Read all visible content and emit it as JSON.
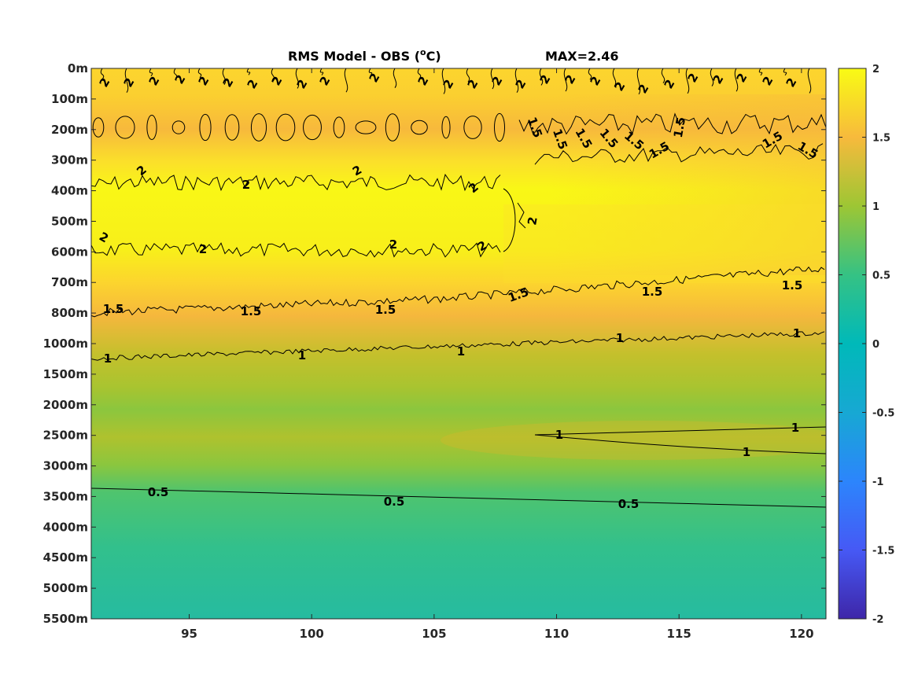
{
  "chart_data": {
    "type": "heatmap",
    "title": "RMS Model - OBS (",
    "title_unit_sup": "o",
    "title_unit_end": "C)",
    "max_label": "MAX=2.46",
    "x_ticks": [
      95,
      100,
      105,
      110,
      115,
      120
    ],
    "xlim": [
      91,
      121
    ],
    "y_tick_labels": [
      "0m",
      "100m",
      "200m",
      "300m",
      "400m",
      "500m",
      "600m",
      "700m",
      "800m",
      "1000m",
      "1500m",
      "2000m",
      "2500m",
      "3000m",
      "3500m",
      "4000m",
      "4500m",
      "5000m",
      "5500m"
    ],
    "colorbar": {
      "range": [
        -2,
        2
      ],
      "tick_values": [
        2,
        1.5,
        1,
        0.5,
        0,
        -0.5,
        -1,
        -1.5,
        -2
      ],
      "tick_labels": [
        "2",
        "1.5",
        "1",
        "0.5",
        "0",
        "-0.5",
        "-1",
        "-1.5",
        "-2"
      ],
      "colormap": "parula"
    },
    "depth_profile": [
      {
        "depth": "0m",
        "value": 1.85
      },
      {
        "depth": "100m",
        "value": 1.8
      },
      {
        "depth": "200m",
        "value": 1.55
      },
      {
        "depth": "300m",
        "value": 1.8
      },
      {
        "depth": "400m",
        "value": 2.05
      },
      {
        "depth": "500m",
        "value": 2.1
      },
      {
        "depth": "600m",
        "value": 1.95
      },
      {
        "depth": "700m",
        "value": 1.6
      },
      {
        "depth": "800m",
        "value": 1.45
      },
      {
        "depth": "1000m",
        "value": 1.1
      },
      {
        "depth": "1500m",
        "value": 0.95
      },
      {
        "depth": "2000m",
        "value": 0.85
      },
      {
        "depth": "2500m",
        "value": 0.95
      },
      {
        "depth": "3000m",
        "value": 0.8
      },
      {
        "depth": "3500m",
        "value": 0.55
      },
      {
        "depth": "4000m",
        "value": 0.45
      },
      {
        "depth": "4500m",
        "value": 0.38
      },
      {
        "depth": "5000m",
        "value": 0.32
      },
      {
        "depth": "5500m",
        "value": 0.28
      }
    ],
    "contour_levels": [
      "0.5",
      "1",
      "1.5",
      "2"
    ]
  }
}
